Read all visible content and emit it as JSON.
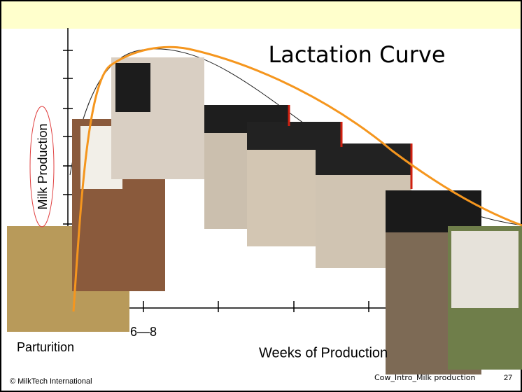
{
  "slide": {
    "title": "Lactation Curve",
    "y_axis_label": "Milk Production",
    "x_axis_label": "Weeks of Production",
    "x_marks": [
      "Parturition",
      "6—8"
    ],
    "footer": {
      "copyright": "© MilkTech International",
      "file": "Cow_Intro_Milk production",
      "page": "27"
    }
  }
}
